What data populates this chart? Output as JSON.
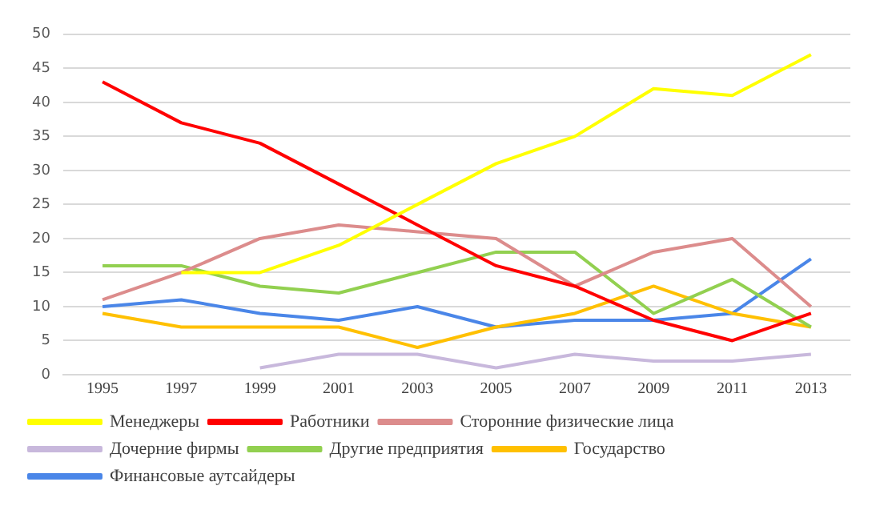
{
  "chart_data": {
    "type": "line",
    "categories": [
      "1995",
      "1997",
      "1999",
      "2001",
      "2003",
      "2005",
      "2007",
      "2009",
      "2011",
      "2013"
    ],
    "series": [
      {
        "name": "Менеджеры",
        "color": "#ffff00",
        "values": [
          null,
          15,
          15,
          19,
          25,
          31,
          35,
          42,
          41,
          47
        ]
      },
      {
        "name": "Работники",
        "color": "#ff0000",
        "values": [
          43,
          37,
          34,
          28,
          22,
          16,
          13,
          8,
          5,
          9
        ]
      },
      {
        "name": "Сторонние физические лица",
        "color": "#dc8c8c",
        "values": [
          11,
          15,
          20,
          22,
          21,
          20,
          13,
          18,
          20,
          10
        ]
      },
      {
        "name": "Дочерние фирмы",
        "color": "#c8b8dc",
        "values": [
          null,
          null,
          1,
          3,
          3,
          1,
          3,
          2,
          2,
          3
        ]
      },
      {
        "name": "Другие предприятия",
        "color": "#92d050",
        "values": [
          16,
          16,
          13,
          12,
          15,
          18,
          18,
          9,
          14,
          7
        ]
      },
      {
        "name": "Государство",
        "color": "#ffc000",
        "values": [
          9,
          7,
          7,
          7,
          4,
          7,
          9,
          13,
          9,
          7
        ]
      },
      {
        "name": "Финансовые аутсайдеры",
        "color": "#4a86e8",
        "values": [
          10,
          11,
          9,
          8,
          10,
          7,
          8,
          8,
          9,
          17
        ]
      }
    ],
    "ylim": [
      0,
      50
    ],
    "yticks": [
      0,
      5,
      10,
      15,
      20,
      25,
      30,
      35,
      40,
      45,
      50
    ],
    "grid": "y",
    "legend": "bottom",
    "marker": "none",
    "line_style": "solid"
  }
}
